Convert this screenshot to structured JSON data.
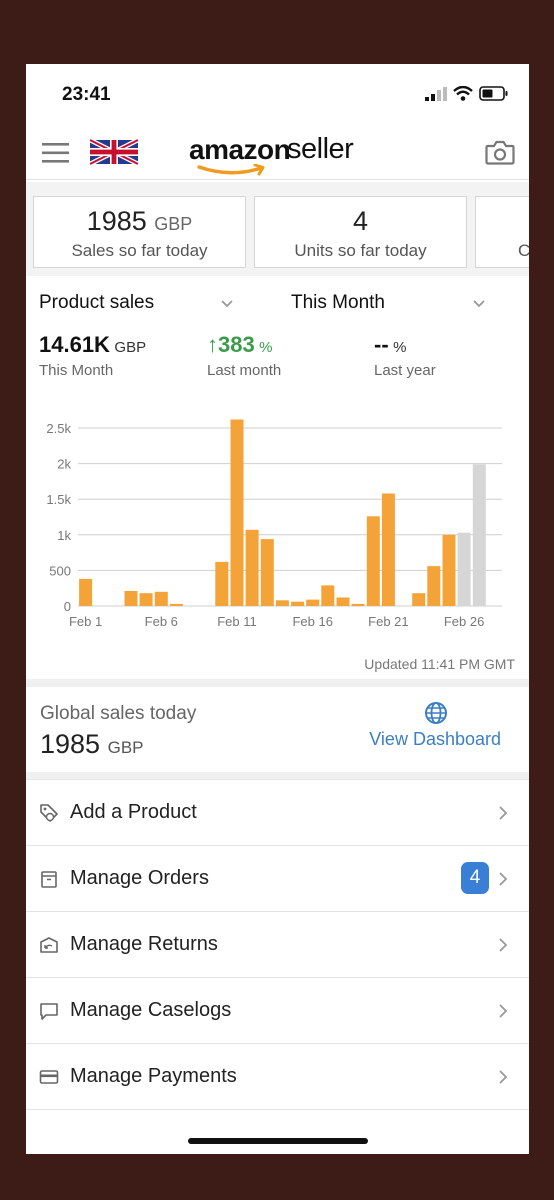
{
  "status": {
    "time": "23:41"
  },
  "header": {
    "logo_amazon": "amazon",
    "logo_seller": "seller"
  },
  "kpis": [
    {
      "value": "1985",
      "unit": "GBP",
      "label": "Sales so far today"
    },
    {
      "value": "4",
      "unit": "",
      "label": "Units so far today"
    },
    {
      "value": "",
      "unit": "",
      "label": "C"
    }
  ],
  "chart_controls": {
    "metric": "Product sales",
    "period": "This Month"
  },
  "stats": {
    "this_month": {
      "value": "14.61K",
      "unit": "GBP",
      "label": "This Month"
    },
    "last_month": {
      "arrow": "↑",
      "value": "383",
      "unit": "%",
      "label": "Last month"
    },
    "last_year": {
      "value": "--",
      "unit": "%",
      "label": "Last year"
    }
  },
  "chart_data": {
    "type": "bar",
    "x_ticks": [
      "Feb 1",
      "Feb 6",
      "Feb 11",
      "Feb 16",
      "Feb 21",
      "Feb 26"
    ],
    "y_ticks": [
      "0",
      "500",
      "1k",
      "1.5k",
      "2k",
      "2.5k"
    ],
    "ylim": [
      0,
      2500
    ],
    "grid": true,
    "categories": [
      1,
      2,
      3,
      4,
      5,
      6,
      7,
      8,
      9,
      10,
      11,
      12,
      13,
      14,
      15,
      16,
      17,
      18,
      19,
      20,
      21,
      22,
      23,
      24,
      25,
      26,
      27,
      28
    ],
    "values": [
      380,
      0,
      0,
      210,
      180,
      200,
      30,
      0,
      0,
      620,
      2620,
      1070,
      940,
      80,
      60,
      90,
      290,
      120,
      30,
      1260,
      1580,
      0,
      180,
      560,
      1000,
      1030,
      1990,
      0
    ],
    "projected": [
      false,
      false,
      false,
      false,
      false,
      false,
      false,
      false,
      false,
      false,
      false,
      false,
      false,
      false,
      false,
      false,
      false,
      false,
      false,
      false,
      false,
      false,
      false,
      false,
      false,
      true,
      true,
      false
    ],
    "colors": {
      "actual": "#f3a338",
      "projected": "#d6d6d6",
      "grid": "#cfcfcf",
      "text": "#777777"
    }
  },
  "updated_text": "Updated 11:41 PM GMT",
  "global": {
    "label": "Global sales today",
    "value": "1985",
    "unit": "GBP",
    "link": "View Dashboard"
  },
  "menu": [
    {
      "label": "Add a Product",
      "icon": "tag-icon",
      "badge": ""
    },
    {
      "label": "Manage Orders",
      "icon": "box-icon",
      "badge": "4"
    },
    {
      "label": "Manage Returns",
      "icon": "return-box-icon",
      "badge": ""
    },
    {
      "label": "Manage Caselogs",
      "icon": "chat-bubble-icon",
      "badge": ""
    },
    {
      "label": "Manage Payments",
      "icon": "credit-card-icon",
      "badge": ""
    }
  ]
}
